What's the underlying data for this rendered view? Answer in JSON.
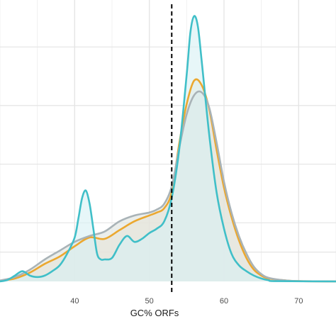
{
  "chart_data": {
    "type": "area",
    "title": "",
    "xlabel": "GC% ORFs",
    "ylabel": "",
    "xlim": [
      30.0,
      75.0
    ],
    "ylim": [
      0.0,
      0.096
    ],
    "grid": true,
    "legend": "none",
    "x_ticks": [
      40,
      50,
      60,
      70
    ],
    "y_ticks": [
      0.01,
      0.02,
      0.04,
      0.06,
      0.08
    ],
    "y_tick_labels_shown": false,
    "reference_line": {
      "x": 53.0,
      "style": "dashed",
      "color": "#000000"
    },
    "series": [
      {
        "color": "#EBA830",
        "fill": "#F3E3D2",
        "points": [
          [
            30.0,
            0.0002
          ],
          [
            32.0,
            0.001
          ],
          [
            34.0,
            0.003
          ],
          [
            36.0,
            0.006
          ],
          [
            38.0,
            0.0085
          ],
          [
            40.0,
            0.012
          ],
          [
            42.0,
            0.015
          ],
          [
            44.0,
            0.0145
          ],
          [
            46.0,
            0.0175
          ],
          [
            48.0,
            0.0205
          ],
          [
            50.0,
            0.0225
          ],
          [
            51.0,
            0.0235
          ],
          [
            52.0,
            0.025
          ],
          [
            53.0,
            0.0305
          ],
          [
            54.0,
            0.047
          ],
          [
            55.0,
            0.0605
          ],
          [
            56.0,
            0.0685
          ],
          [
            57.0,
            0.067
          ],
          [
            58.0,
            0.059
          ],
          [
            59.0,
            0.045
          ],
          [
            60.0,
            0.032
          ],
          [
            61.0,
            0.022
          ],
          [
            62.0,
            0.014
          ],
          [
            63.0,
            0.008
          ],
          [
            64.0,
            0.004
          ],
          [
            65.0,
            0.002
          ],
          [
            66.0,
            0.001
          ],
          [
            68.0,
            0.0004
          ],
          [
            70.0,
            0.0001
          ],
          [
            75.0,
            0.0
          ]
        ]
      },
      {
        "color": "#A9B3B7",
        "fill": "#DEE3DF",
        "points": [
          [
            30.0,
            0.0003
          ],
          [
            32.0,
            0.0015
          ],
          [
            34.0,
            0.004
          ],
          [
            36.0,
            0.0075
          ],
          [
            38.0,
            0.0105
          ],
          [
            40.0,
            0.0135
          ],
          [
            42.0,
            0.0155
          ],
          [
            44.0,
            0.017
          ],
          [
            46.0,
            0.0205
          ],
          [
            48.0,
            0.0225
          ],
          [
            50.0,
            0.0235
          ],
          [
            51.0,
            0.0245
          ],
          [
            52.0,
            0.0265
          ],
          [
            53.0,
            0.0325
          ],
          [
            54.0,
            0.0455
          ],
          [
            55.0,
            0.057
          ],
          [
            56.0,
            0.0635
          ],
          [
            57.0,
            0.0645
          ],
          [
            58.0,
            0.0595
          ],
          [
            59.0,
            0.0475
          ],
          [
            60.0,
            0.034
          ],
          [
            61.0,
            0.0235
          ],
          [
            62.0,
            0.0155
          ],
          [
            63.0,
            0.0095
          ],
          [
            64.0,
            0.005
          ],
          [
            65.0,
            0.0025
          ],
          [
            66.0,
            0.0012
          ],
          [
            68.0,
            0.0004
          ],
          [
            70.0,
            0.0001
          ],
          [
            75.0,
            0.0
          ]
        ]
      },
      {
        "color": "#40BFC8",
        "fill": "#D8F1F3",
        "points": [
          [
            30.0,
            0.0
          ],
          [
            31.0,
            0.0005
          ],
          [
            32.0,
            0.002
          ],
          [
            33.0,
            0.0035
          ],
          [
            34.0,
            0.002
          ],
          [
            35.0,
            0.0015
          ],
          [
            36.0,
            0.002
          ],
          [
            37.0,
            0.0035
          ],
          [
            38.0,
            0.0055
          ],
          [
            39.0,
            0.0095
          ],
          [
            40.0,
            0.015
          ],
          [
            40.5,
            0.0215
          ],
          [
            41.0,
            0.0285
          ],
          [
            41.5,
            0.031
          ],
          [
            42.0,
            0.0265
          ],
          [
            42.5,
            0.018
          ],
          [
            43.0,
            0.0095
          ],
          [
            43.5,
            0.0075
          ],
          [
            44.0,
            0.0075
          ],
          [
            45.0,
            0.008
          ],
          [
            46.0,
            0.0125
          ],
          [
            47.0,
            0.0155
          ],
          [
            48.0,
            0.0135
          ],
          [
            49.0,
            0.0145
          ],
          [
            50.0,
            0.0165
          ],
          [
            51.0,
            0.018
          ],
          [
            52.0,
            0.0205
          ],
          [
            53.0,
            0.0285
          ],
          [
            54.0,
            0.045
          ],
          [
            55.0,
            0.0705
          ],
          [
            55.5,
            0.085
          ],
          [
            56.0,
            0.0905
          ],
          [
            56.5,
            0.087
          ],
          [
            57.0,
            0.0755
          ],
          [
            58.0,
            0.0505
          ],
          [
            59.0,
            0.0305
          ],
          [
            60.0,
            0.018
          ],
          [
            61.0,
            0.0095
          ],
          [
            62.0,
            0.0055
          ],
          [
            63.0,
            0.0035
          ],
          [
            64.0,
            0.002
          ],
          [
            65.0,
            0.001
          ],
          [
            66.0,
            0.0004
          ],
          [
            67.0,
            0.0001
          ],
          [
            75.0,
            0.0
          ]
        ]
      }
    ]
  }
}
